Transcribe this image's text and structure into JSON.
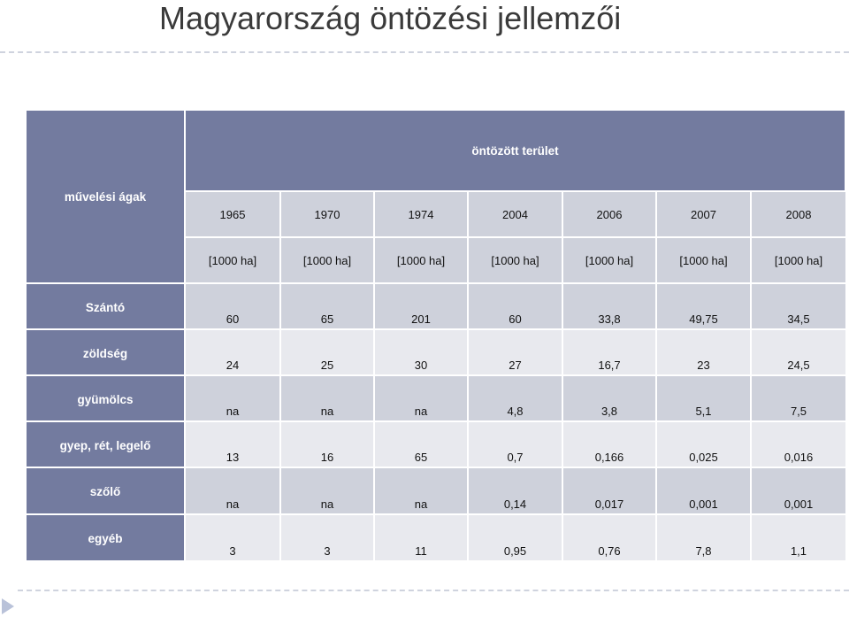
{
  "title": "Magyarország öntözési jellemzői",
  "table": {
    "corner_label": "művelési ágak",
    "group_header": "öntözött terület",
    "years": [
      "1965",
      "1970",
      "1974",
      "2004",
      "2006",
      "2007",
      "2008"
    ],
    "units": [
      "[1000 ha]",
      "[1000 ha]",
      "[1000 ha]",
      "[1000 ha]",
      "[1000 ha]",
      "[1000 ha]",
      "[1000 ha]"
    ],
    "rows": [
      {
        "label": "Szántó",
        "values": [
          "60",
          "65",
          "201",
          "60",
          "33,8",
          "49,75",
          "34,5"
        ]
      },
      {
        "label": "zöldség",
        "values": [
          "24",
          "25",
          "30",
          "27",
          "16,7",
          "23",
          "24,5"
        ]
      },
      {
        "label": "gyümölcs",
        "values": [
          "na",
          "na",
          "na",
          "4,8",
          "3,8",
          "5,1",
          "7,5"
        ]
      },
      {
        "label": "gyep, rét, legelő",
        "values": [
          "13",
          "16",
          "65",
          "0,7",
          "0,166",
          "0,025",
          "0,016"
        ]
      },
      {
        "label": "szőlő",
        "values": [
          "na",
          "na",
          "na",
          "0,14",
          "0,017",
          "0,001",
          "0,001"
        ]
      },
      {
        "label": "egyéb",
        "values": [
          "3",
          "3",
          "11",
          "0,95",
          "0,76",
          "7,8",
          "1,1"
        ]
      }
    ]
  }
}
